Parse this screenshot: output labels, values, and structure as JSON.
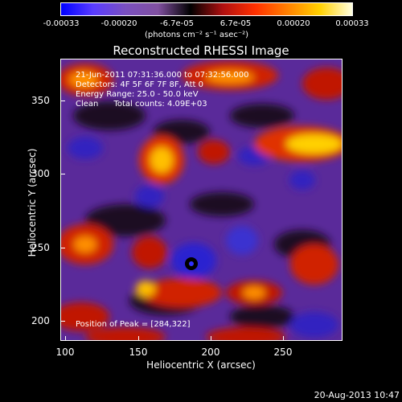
{
  "colorbar": {
    "ticks": [
      "-0.00033",
      "-0.00020",
      "-6.7e-05",
      "6.7e-05",
      "0.00020",
      "0.00033"
    ],
    "units": "(photons cm⁻² s⁻¹ asec⁻²)",
    "colors": [
      "#0000ff",
      "#5a3cff",
      "#7a50c0",
      "#8050a0",
      "#000000",
      "#b01010",
      "#ff3000",
      "#ff8000",
      "#ffd000",
      "#ffffe0"
    ]
  },
  "title": "Reconstructed RHESSI Image",
  "annotations": {
    "time": "21-Jun-2011 07:31:36.000 to 07:32:56.000",
    "detectors": "Detectors: 4F 5F 6F 7F 8F, Att 0",
    "energy": "Energy Range: 25.0 - 50.0 keV",
    "clean": "Clean      Total counts: 4.09E+03",
    "peak": "Position of Peak = [284,322]"
  },
  "axes": {
    "xlabel": "Heliocentric X (arcsec)",
    "ylabel": "Heliocentric Y (arcsec)",
    "xticks": [
      "100",
      "150",
      "200",
      "250"
    ],
    "yticks": [
      "200",
      "250",
      "300",
      "350"
    ],
    "xlim": [
      100,
      290
    ],
    "ylim": [
      186,
      376
    ]
  },
  "timestamp": "20-Aug-2013 10:47"
}
